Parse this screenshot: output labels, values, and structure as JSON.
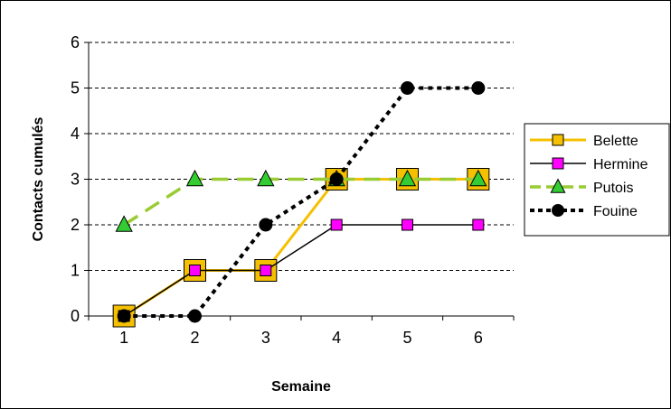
{
  "chart_data": {
    "type": "line",
    "title": "",
    "xlabel": "Semaine",
    "ylabel": "Contacts cumulés",
    "x": [
      1,
      2,
      3,
      4,
      5,
      6
    ],
    "xticks": [
      "1",
      "2",
      "3",
      "4",
      "5",
      "6"
    ],
    "yticks": [
      "0",
      "1",
      "2",
      "3",
      "4",
      "5",
      "6"
    ],
    "ylim": [
      0,
      6
    ],
    "grid": "horizontal dashed",
    "legend_position": "right",
    "series": [
      {
        "name": "Belette",
        "values": [
          0,
          1,
          1,
          3,
          3,
          3
        ],
        "color": "#F5C000",
        "marker": "square",
        "marker_fill": "#F5C000",
        "line_style": "solid"
      },
      {
        "name": "Hermine",
        "values": [
          0,
          1,
          1,
          2,
          2,
          2
        ],
        "color": "#000000",
        "marker": "square",
        "marker_fill": "#FF00FF",
        "line_style": "solid"
      },
      {
        "name": "Putois",
        "values": [
          2,
          3,
          3,
          3,
          3,
          3
        ],
        "color": "#99CC33",
        "marker": "triangle",
        "marker_fill": "#33CC33",
        "line_style": "dashed"
      },
      {
        "name": "Fouine",
        "values": [
          0,
          0,
          2,
          3,
          5,
          5
        ],
        "color": "#000000",
        "marker": "circle",
        "marker_fill": "#000000",
        "line_style": "dotted"
      }
    ]
  }
}
